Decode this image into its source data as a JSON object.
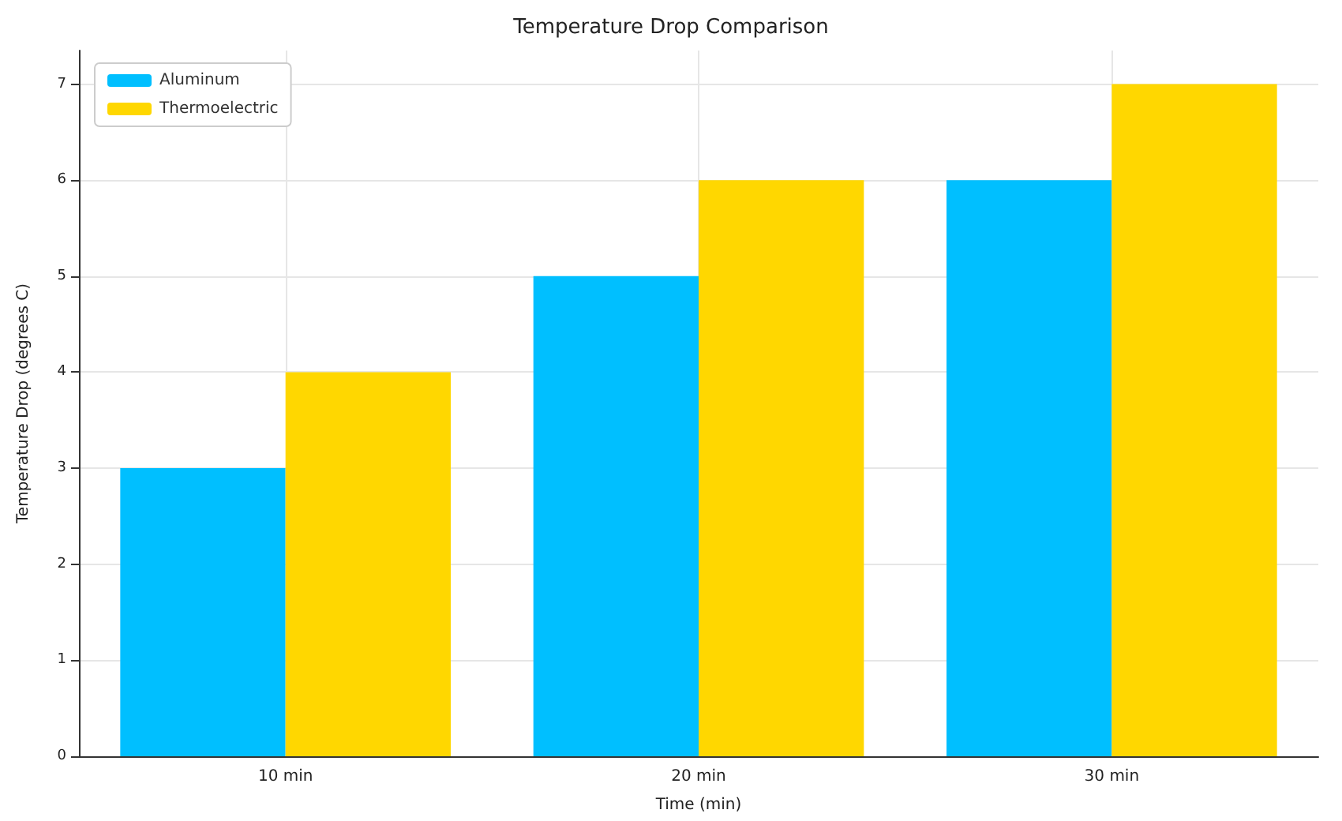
{
  "chart_data": {
    "type": "bar",
    "title": "Temperature Drop Comparison",
    "xlabel": "Time (min)",
    "ylabel": "Temperature Drop (degrees C)",
    "categories": [
      "10 min",
      "20 min",
      "30 min"
    ],
    "series": [
      {
        "name": "Aluminum",
        "color": "#00bfff",
        "values": [
          3,
          5,
          6
        ]
      },
      {
        "name": "Thermoelectric",
        "color": "#ffd700",
        "values": [
          4,
          6,
          7
        ]
      }
    ],
    "ylim": [
      0,
      7.35
    ],
    "yticks": [
      0,
      1,
      2,
      3,
      4,
      5,
      6,
      7
    ],
    "grid": true,
    "legend": "top left"
  }
}
